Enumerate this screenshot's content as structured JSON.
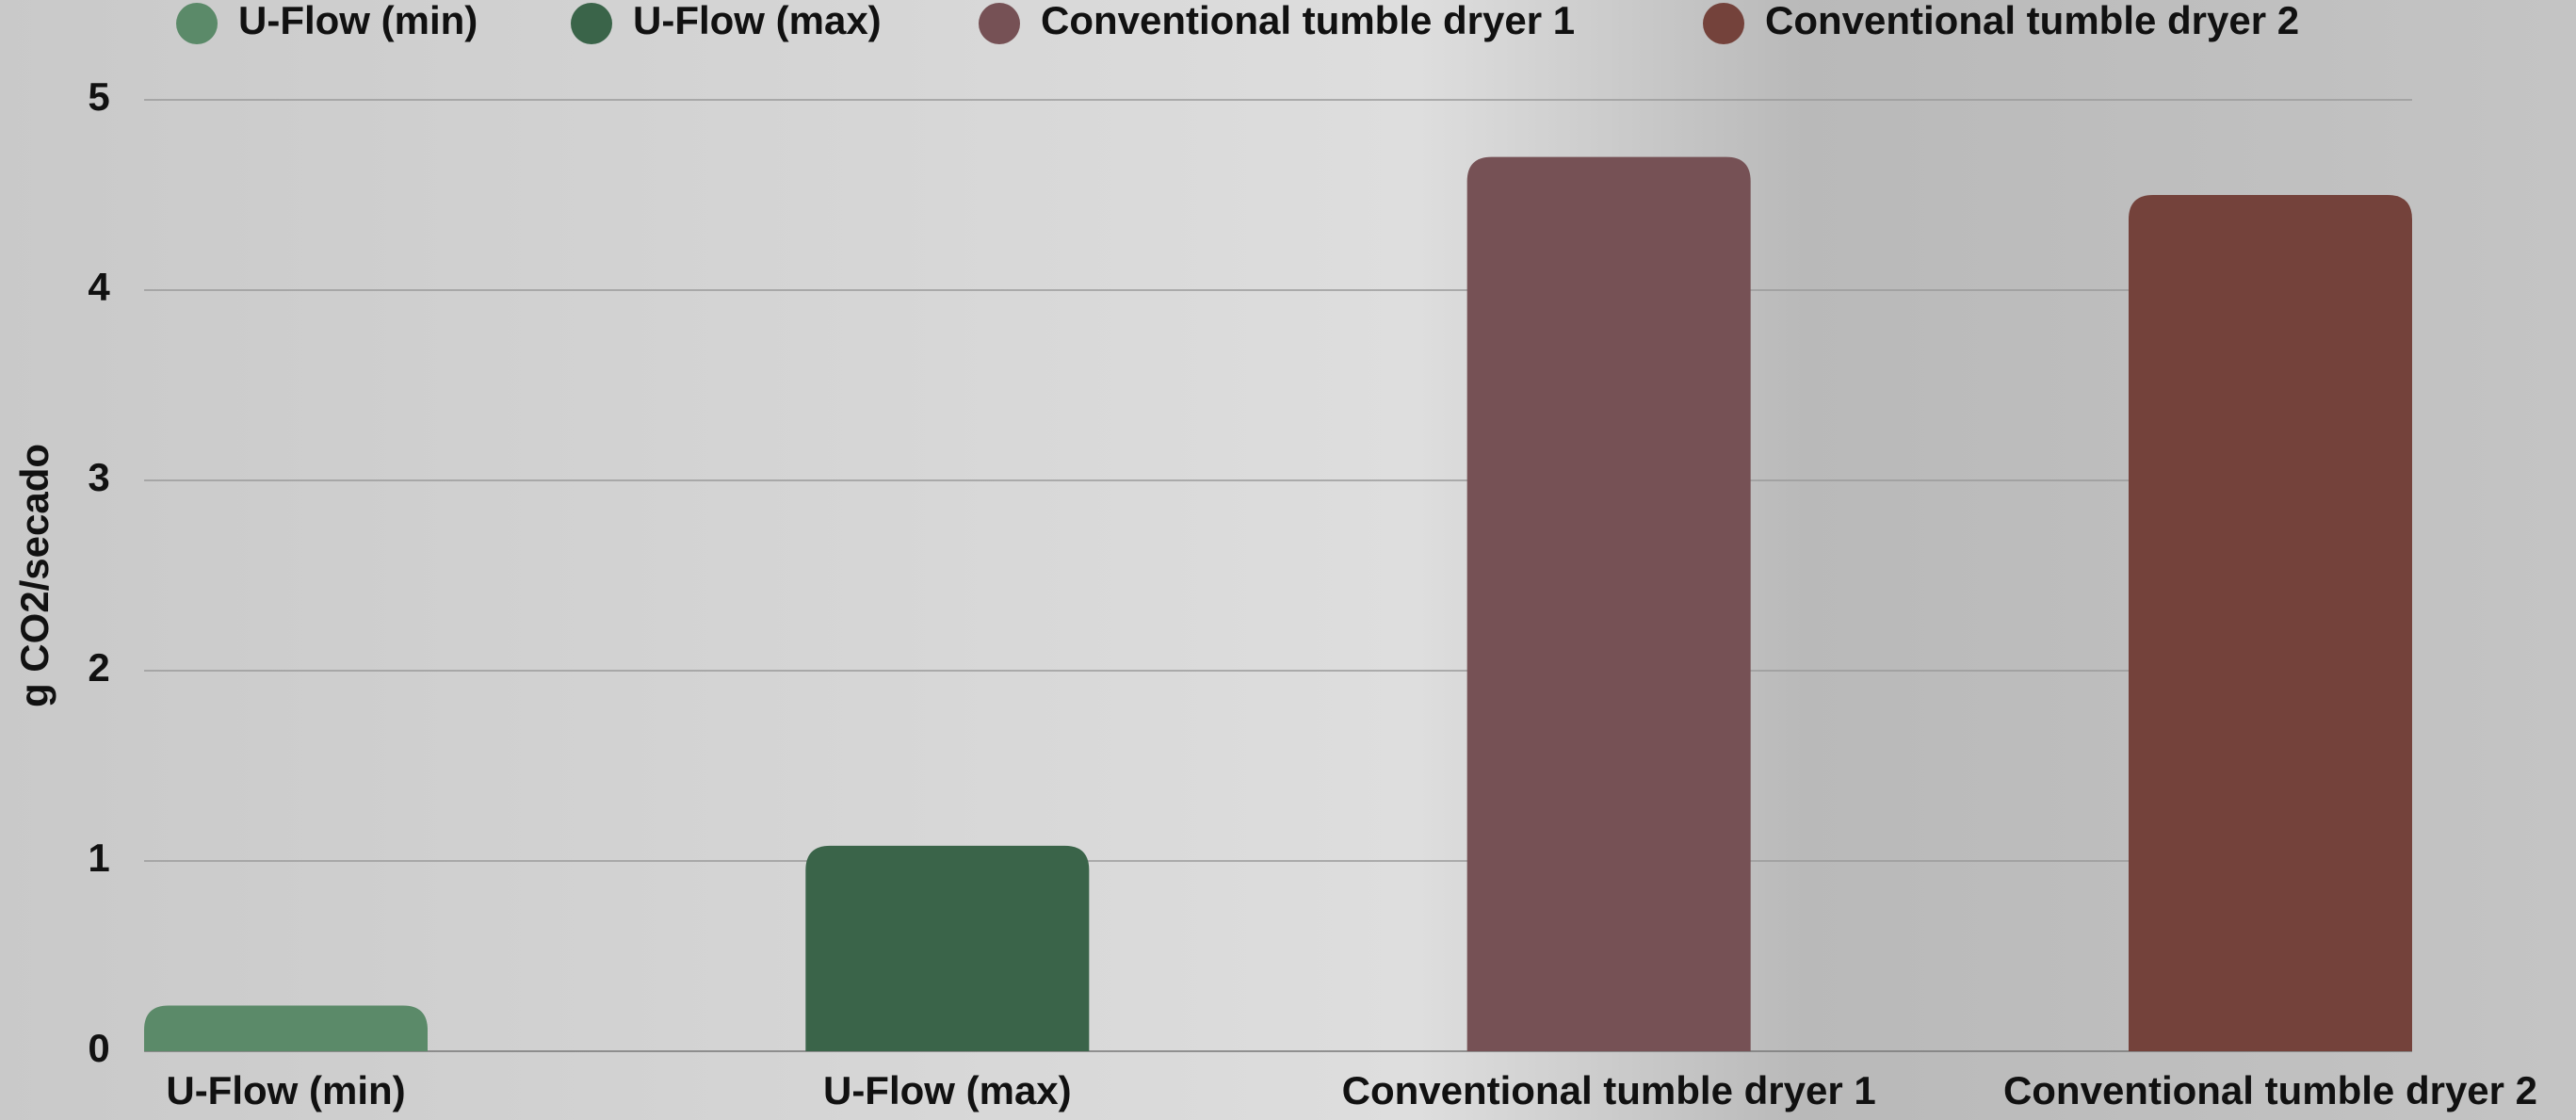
{
  "chart_data": {
    "type": "bar",
    "y_label": "g CO2/secado",
    "categories": [
      "U-Flow (min)",
      "U-Flow (max)",
      "Conventional tumble dryer 1",
      "Conventional tumble dryer 2"
    ],
    "values": [
      0.24,
      1.08,
      4.7,
      4.5
    ],
    "colors": [
      "#5b8a69",
      "#3a6449",
      "#765155",
      "#74423b"
    ],
    "ylim": [
      0,
      5
    ],
    "yticks": [
      0,
      1,
      2,
      3,
      4,
      5
    ],
    "grid": true,
    "legend": "top"
  }
}
